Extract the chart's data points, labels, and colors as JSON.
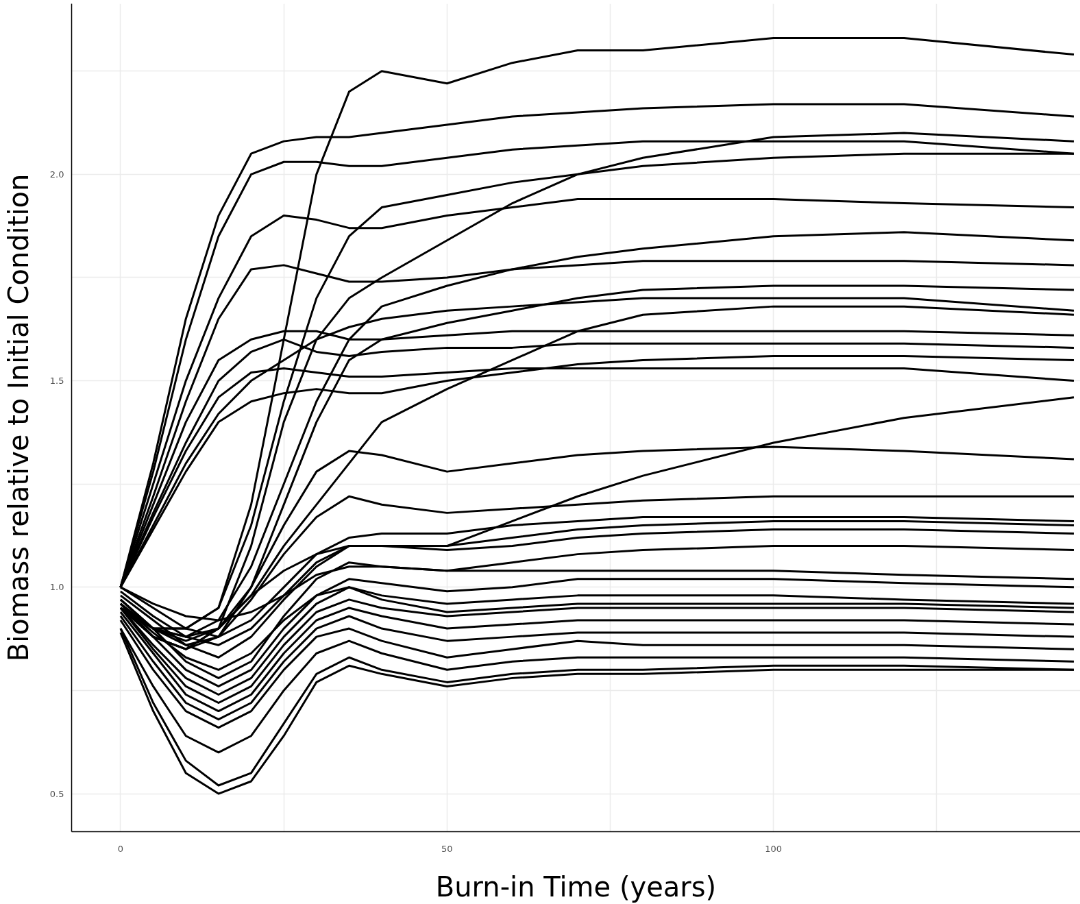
{
  "chart_data": {
    "type": "line",
    "xlabel": "Burn-in Time (years)",
    "ylabel": "Biomass relative to Initial Condition",
    "x": [
      0,
      5,
      10,
      15,
      20,
      25,
      30,
      35,
      40,
      50,
      60,
      70,
      80,
      100,
      120,
      146
    ],
    "xlim": [
      -7.5,
      147
    ],
    "ylim": [
      0.408,
      2.413
    ],
    "xticks": [
      0,
      {
        "value": 25,
        "label": null
      },
      50,
      {
        "value": 75,
        "label": null
      },
      100,
      {
        "value": 125,
        "label": null
      }
    ],
    "yticks": [
      {
        "value": 0.5,
        "label": "0.5"
      },
      {
        "value": 0.75,
        "label": null
      },
      {
        "value": 1.0,
        "label": "1.0"
      },
      {
        "value": 1.25,
        "label": null
      },
      {
        "value": 1.5,
        "label": "1.5"
      },
      {
        "value": 1.75,
        "label": null
      },
      {
        "value": 2.0,
        "label": "2.0"
      },
      {
        "value": 2.25,
        "label": null
      }
    ],
    "grid": true,
    "marker": "none",
    "line_style": "solid",
    "series": [
      {
        "color": "#000000",
        "values": [
          0.95,
          0.9,
          0.9,
          0.95,
          1.2,
          1.6,
          2.0,
          2.2,
          2.25,
          2.22,
          2.27,
          2.3,
          2.3,
          2.33,
          2.33,
          2.29
        ]
      },
      {
        "color": "#000000",
        "values": [
          1.0,
          1.3,
          1.65,
          1.9,
          2.05,
          2.08,
          2.09,
          2.09,
          2.1,
          2.12,
          2.14,
          2.15,
          2.16,
          2.17,
          2.17,
          2.14
        ]
      },
      {
        "color": "#000000",
        "values": [
          1.0,
          1.28,
          1.6,
          1.85,
          2.0,
          2.03,
          2.03,
          2.02,
          2.02,
          2.04,
          2.06,
          2.07,
          2.08,
          2.08,
          2.08,
          2.05
        ]
      },
      {
        "color": "#000000",
        "values": [
          1.0,
          1.25,
          1.5,
          1.7,
          1.85,
          1.9,
          1.89,
          1.87,
          1.87,
          1.9,
          1.92,
          1.94,
          1.94,
          1.94,
          1.93,
          1.92
        ]
      },
      {
        "color": "#000000",
        "values": [
          1.0,
          1.22,
          1.45,
          1.65,
          1.77,
          1.78,
          1.76,
          1.74,
          1.74,
          1.75,
          1.77,
          1.78,
          1.79,
          1.79,
          1.79,
          1.78
        ]
      },
      {
        "color": "#000000",
        "values": [
          1.0,
          1.2,
          1.4,
          1.55,
          1.6,
          1.62,
          1.62,
          1.6,
          1.6,
          1.61,
          1.62,
          1.62,
          1.62,
          1.62,
          1.62,
          1.61
        ]
      },
      {
        "color": "#000000",
        "values": [
          1.0,
          1.18,
          1.35,
          1.5,
          1.57,
          1.6,
          1.57,
          1.56,
          1.57,
          1.58,
          1.58,
          1.59,
          1.59,
          1.59,
          1.59,
          1.58
        ]
      },
      {
        "color": "#000000",
        "values": [
          1.0,
          1.17,
          1.33,
          1.46,
          1.52,
          1.53,
          1.52,
          1.51,
          1.51,
          1.52,
          1.53,
          1.53,
          1.53,
          1.53,
          1.53,
          1.5
        ]
      },
      {
        "color": "#000000",
        "values": [
          1.0,
          1.15,
          1.3,
          1.42,
          1.5,
          1.55,
          1.6,
          1.63,
          1.65,
          1.67,
          1.68,
          1.69,
          1.7,
          1.7,
          1.7,
          1.67
        ]
      },
      {
        "color": "#000000",
        "values": [
          1.0,
          1.14,
          1.28,
          1.4,
          1.45,
          1.47,
          1.48,
          1.47,
          1.47,
          1.5,
          1.52,
          1.54,
          1.55,
          1.56,
          1.56,
          1.55
        ]
      },
      {
        "color": "#000000",
        "values": [
          0.95,
          0.9,
          0.9,
          0.95,
          1.15,
          1.45,
          1.7,
          1.85,
          1.92,
          1.95,
          1.98,
          2.0,
          2.02,
          2.04,
          2.05,
          2.05
        ]
      },
      {
        "color": "#000000",
        "values": [
          0.95,
          0.88,
          0.85,
          0.9,
          1.1,
          1.4,
          1.6,
          1.7,
          1.75,
          1.84,
          1.93,
          2.0,
          2.04,
          2.09,
          2.1,
          2.08
        ]
      },
      {
        "color": "#000000",
        "values": [
          0.97,
          0.9,
          0.88,
          0.92,
          1.05,
          1.25,
          1.45,
          1.6,
          1.68,
          1.73,
          1.77,
          1.8,
          1.82,
          1.85,
          1.86,
          1.84
        ]
      },
      {
        "color": "#000000",
        "values": [
          0.96,
          0.88,
          0.85,
          0.88,
          1.0,
          1.2,
          1.4,
          1.55,
          1.6,
          1.64,
          1.67,
          1.7,
          1.72,
          1.73,
          1.73,
          1.72
        ]
      },
      {
        "color": "#000000",
        "values": [
          0.95,
          0.9,
          0.88,
          0.9,
          0.98,
          1.1,
          1.2,
          1.3,
          1.4,
          1.48,
          1.55,
          1.62,
          1.66,
          1.68,
          1.68,
          1.66
        ]
      },
      {
        "color": "#000000",
        "values": [
          0.95,
          0.88,
          0.85,
          0.9,
          0.98,
          1.04,
          1.08,
          1.1,
          1.1,
          1.1,
          1.16,
          1.22,
          1.27,
          1.35,
          1.41,
          1.46
        ]
      },
      {
        "color": "#000000",
        "values": [
          0.96,
          0.9,
          0.87,
          0.9,
          1.0,
          1.15,
          1.28,
          1.33,
          1.32,
          1.28,
          1.3,
          1.32,
          1.33,
          1.34,
          1.33,
          1.31
        ]
      },
      {
        "color": "#000000",
        "values": [
          0.97,
          0.9,
          0.86,
          0.88,
          0.97,
          1.08,
          1.17,
          1.22,
          1.2,
          1.18,
          1.19,
          1.2,
          1.21,
          1.22,
          1.22,
          1.22
        ]
      },
      {
        "color": "#000000",
        "values": [
          1.0,
          0.95,
          0.9,
          0.88,
          0.92,
          1.0,
          1.08,
          1.12,
          1.13,
          1.13,
          1.15,
          1.16,
          1.17,
          1.17,
          1.17,
          1.16
        ]
      },
      {
        "color": "#000000",
        "values": [
          0.98,
          0.92,
          0.86,
          0.83,
          0.88,
          0.97,
          1.05,
          1.1,
          1.1,
          1.09,
          1.1,
          1.12,
          1.13,
          1.14,
          1.14,
          1.13
        ]
      },
      {
        "color": "#000000",
        "values": [
          0.97,
          0.9,
          0.82,
          0.78,
          0.82,
          0.93,
          1.02,
          1.06,
          1.05,
          1.04,
          1.06,
          1.08,
          1.09,
          1.1,
          1.1,
          1.09
        ]
      },
      {
        "color": "#000000",
        "values": [
          0.96,
          0.88,
          0.8,
          0.76,
          0.8,
          0.9,
          0.98,
          1.02,
          1.01,
          0.99,
          1.0,
          1.02,
          1.02,
          1.02,
          1.01,
          1.0
        ]
      },
      {
        "color": "#000000",
        "values": [
          0.95,
          0.86,
          0.78,
          0.74,
          0.78,
          0.88,
          0.96,
          1.0,
          0.98,
          0.96,
          0.97,
          0.98,
          0.98,
          0.98,
          0.97,
          0.96
        ]
      },
      {
        "color": "#000000",
        "values": [
          0.95,
          0.85,
          0.76,
          0.72,
          0.76,
          0.86,
          0.94,
          0.97,
          0.95,
          0.93,
          0.94,
          0.95,
          0.95,
          0.95,
          0.95,
          0.94
        ]
      },
      {
        "color": "#000000",
        "values": [
          0.94,
          0.84,
          0.74,
          0.7,
          0.74,
          0.84,
          0.92,
          0.95,
          0.93,
          0.9,
          0.91,
          0.92,
          0.92,
          0.92,
          0.92,
          0.91
        ]
      },
      {
        "color": "#000000",
        "values": [
          0.93,
          0.82,
          0.72,
          0.68,
          0.72,
          0.82,
          0.9,
          0.93,
          0.9,
          0.87,
          0.88,
          0.89,
          0.89,
          0.89,
          0.89,
          0.88
        ]
      },
      {
        "color": "#000000",
        "values": [
          0.92,
          0.8,
          0.7,
          0.66,
          0.7,
          0.8,
          0.88,
          0.9,
          0.87,
          0.83,
          0.85,
          0.87,
          0.86,
          0.86,
          0.86,
          0.85
        ]
      },
      {
        "color": "#000000",
        "values": [
          0.9,
          0.76,
          0.64,
          0.6,
          0.64,
          0.75,
          0.84,
          0.87,
          0.84,
          0.8,
          0.82,
          0.83,
          0.83,
          0.83,
          0.83,
          0.82
        ]
      },
      {
        "color": "#000000",
        "values": [
          0.9,
          0.72,
          0.58,
          0.52,
          0.55,
          0.67,
          0.79,
          0.83,
          0.8,
          0.77,
          0.79,
          0.8,
          0.8,
          0.81,
          0.81,
          0.8
        ]
      },
      {
        "color": "#000000",
        "values": [
          0.89,
          0.7,
          0.55,
          0.5,
          0.53,
          0.64,
          0.77,
          0.81,
          0.79,
          0.76,
          0.78,
          0.79,
          0.79,
          0.8,
          0.8,
          0.8
        ]
      },
      {
        "color": "#000000",
        "values": [
          1.0,
          0.96,
          0.93,
          0.92,
          0.94,
          0.98,
          1.03,
          1.05,
          1.05,
          1.04,
          1.04,
          1.04,
          1.04,
          1.04,
          1.03,
          1.02
        ]
      },
      {
        "color": "#000000",
        "values": [
          0.99,
          0.93,
          0.88,
          0.86,
          0.9,
          0.98,
          1.06,
          1.1,
          1.1,
          1.1,
          1.12,
          1.14,
          1.15,
          1.16,
          1.16,
          1.15
        ]
      },
      {
        "color": "#000000",
        "values": [
          0.96,
          0.89,
          0.83,
          0.8,
          0.84,
          0.92,
          0.98,
          1.0,
          0.97,
          0.94,
          0.95,
          0.96,
          0.96,
          0.96,
          0.96,
          0.95
        ]
      }
    ]
  }
}
